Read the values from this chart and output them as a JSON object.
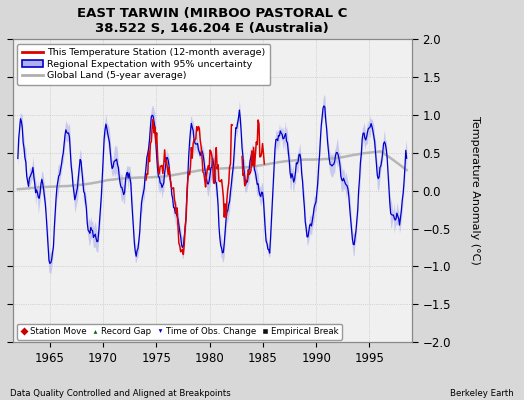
{
  "title": "EAST TARWIN (MIRBOO PASTORAL C",
  "subtitle": "38.522 S, 146.204 E (Australia)",
  "xlabel_left": "Data Quality Controlled and Aligned at Breakpoints",
  "xlabel_right": "Berkeley Earth",
  "ylabel": "Temperature Anomaly (°C)",
  "xmin": 1961.5,
  "xmax": 1999.0,
  "ymin": -2,
  "ymax": 2,
  "yticks": [
    -2,
    -1.5,
    -1,
    -0.5,
    0,
    0.5,
    1,
    1.5,
    2
  ],
  "xticks": [
    1965,
    1970,
    1975,
    1980,
    1985,
    1990,
    1995
  ],
  "legend_entries": [
    "This Temperature Station (12-month average)",
    "Regional Expectation with 95% uncertainty",
    "Global Land (5-year average)"
  ],
  "bg_color": "#d8d8d8",
  "plot_bg_color": "#f0f0f0",
  "station_color": "#dd0000",
  "regional_color": "#0000cc",
  "regional_fill_color": "#b0b0ee",
  "global_color": "#b0b0b0",
  "marker_station_move": "#cc0000",
  "marker_record_gap": "#006600",
  "marker_time_obs": "#0000cc",
  "marker_empirical": "#111111"
}
